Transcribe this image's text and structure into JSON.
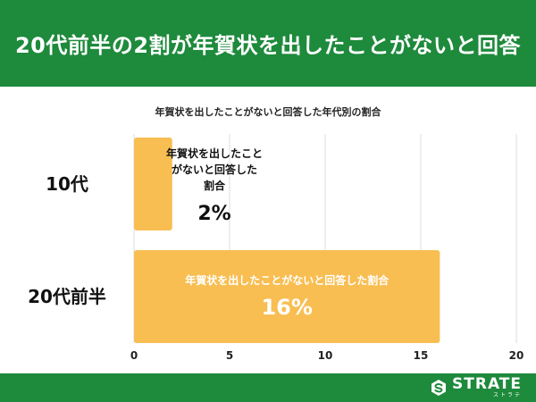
{
  "header": {
    "title": "20代前半の2割が年賀状を出したことがないと回答"
  },
  "footer": {
    "logo_text": "STRATE",
    "logo_sub": "ストラテ",
    "logo_icon": "strate-logo-icon"
  },
  "colors": {
    "header_bg": "#1e8a3c",
    "bar": "#f8be52",
    "grid": "#dddddd"
  },
  "chart_data": {
    "type": "bar",
    "orientation": "horizontal",
    "title": "年賀状を出したことがないと回答した年代別の割合",
    "categories": [
      "10代",
      "20代前半"
    ],
    "values": [
      2,
      16
    ],
    "value_labels": [
      "2%",
      "16%"
    ],
    "bar_captions": [
      [
        "年賀状を出したこと",
        "がないと回答した",
        "割合"
      ],
      [
        "年賀状を出したことがないと回答した割合"
      ]
    ],
    "xlim": [
      0,
      20
    ],
    "xticks": [
      "0",
      "5",
      "10",
      "15",
      "20"
    ],
    "grid": true,
    "legend": "none"
  }
}
